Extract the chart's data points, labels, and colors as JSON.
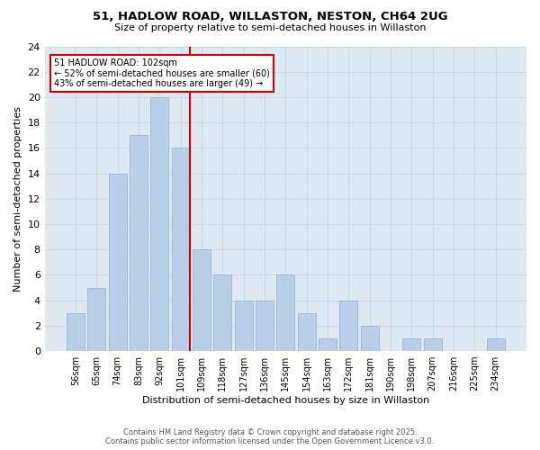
{
  "title_line1": "51, HADLOW ROAD, WILLASTON, NESTON, CH64 2UG",
  "title_line2": "Size of property relative to semi-detached houses in Willaston",
  "xlabel": "Distribution of semi-detached houses by size in Willaston",
  "ylabel": "Number of semi-detached properties",
  "categories": [
    "56sqm",
    "65sqm",
    "74sqm",
    "83sqm",
    "92sqm",
    "101sqm",
    "109sqm",
    "118sqm",
    "127sqm",
    "136sqm",
    "145sqm",
    "154sqm",
    "163sqm",
    "172sqm",
    "181sqm",
    "190sqm",
    "198sqm",
    "207sqm",
    "216sqm",
    "225sqm",
    "234sqm"
  ],
  "values": [
    3,
    5,
    14,
    17,
    20,
    16,
    8,
    6,
    4,
    4,
    6,
    3,
    1,
    4,
    2,
    0,
    1,
    1,
    0,
    0,
    1
  ],
  "bar_color": "#b8cfe8",
  "bar_edge_color": "#8ab0d0",
  "highlight_index": 5,
  "highlight_line_color": "#cc0000",
  "annotation_text": "51 HADLOW ROAD: 102sqm\n← 52% of semi-detached houses are smaller (60)\n43% of semi-detached houses are larger (49) →",
  "annotation_box_color": "#cc0000",
  "ylim": [
    0,
    24
  ],
  "yticks": [
    0,
    2,
    4,
    6,
    8,
    10,
    12,
    14,
    16,
    18,
    20,
    22,
    24
  ],
  "grid_color": "#c8d8e8",
  "background_color": "#dde8f0",
  "footer_line1": "Contains HM Land Registry data © Crown copyright and database right 2025.",
  "footer_line2": "Contains public sector information licensed under the Open Government Licence v3.0."
}
